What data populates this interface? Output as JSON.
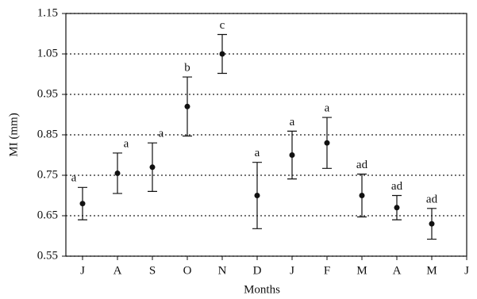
{
  "chart_data": {
    "type": "line",
    "x_label": "Months",
    "y_label": "MI (mm)",
    "categories": [
      "J",
      "A",
      "S",
      "O",
      "N",
      "D",
      "J",
      "F",
      "M",
      "A",
      "M",
      "J"
    ],
    "values": [
      0.68,
      0.755,
      0.77,
      0.92,
      1.05,
      0.7,
      0.8,
      0.83,
      0.7,
      0.67,
      0.63,
      null
    ],
    "errors": [
      0.04,
      0.05,
      0.06,
      0.073,
      0.048,
      0.082,
      0.059,
      0.063,
      0.053,
      0.03,
      0.038,
      null
    ],
    "annotations": [
      "a",
      "a",
      "a",
      "b",
      "c",
      "a",
      "a",
      "a",
      "ad",
      "ad",
      "ad",
      null
    ],
    "color": "#111111",
    "ylim": [
      0.55,
      1.15
    ],
    "yticks": [
      0.55,
      0.65,
      0.75,
      0.85,
      0.95,
      1.05,
      1.15
    ],
    "grid": true
  }
}
